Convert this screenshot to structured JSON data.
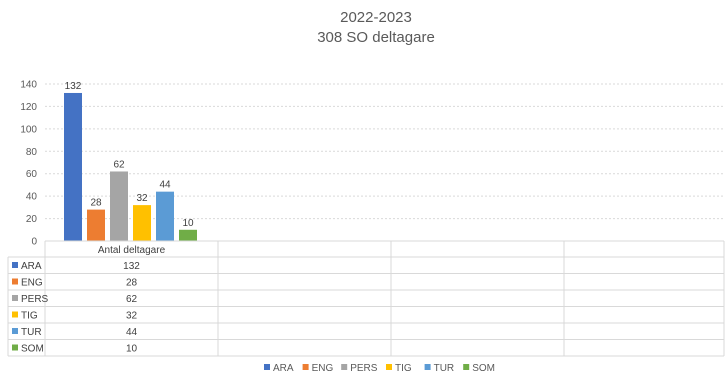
{
  "chart_data": {
    "type": "bar",
    "title": "2022-2023",
    "subtitle": "308 SO deltagare",
    "categories": [
      "Antal deltagare"
    ],
    "series": [
      {
        "name": "ARA",
        "values": [
          132
        ],
        "color": "#4472C4"
      },
      {
        "name": "ENG",
        "values": [
          28
        ],
        "color": "#ED7D31"
      },
      {
        "name": "PERS",
        "values": [
          62
        ],
        "color": "#A5A5A5"
      },
      {
        "name": "TIG",
        "values": [
          32
        ],
        "color": "#FFC000"
      },
      {
        "name": "TUR",
        "values": [
          44
        ],
        "color": "#5B9BD5"
      },
      {
        "name": "SOM",
        "values": [
          10
        ],
        "color": "#70AD47"
      }
    ],
    "ylim": [
      0,
      140
    ],
    "yticks": [
      0,
      20,
      40,
      60,
      80,
      100,
      120,
      140
    ],
    "grid": true,
    "data_table": true,
    "legend_position": "bottom"
  }
}
